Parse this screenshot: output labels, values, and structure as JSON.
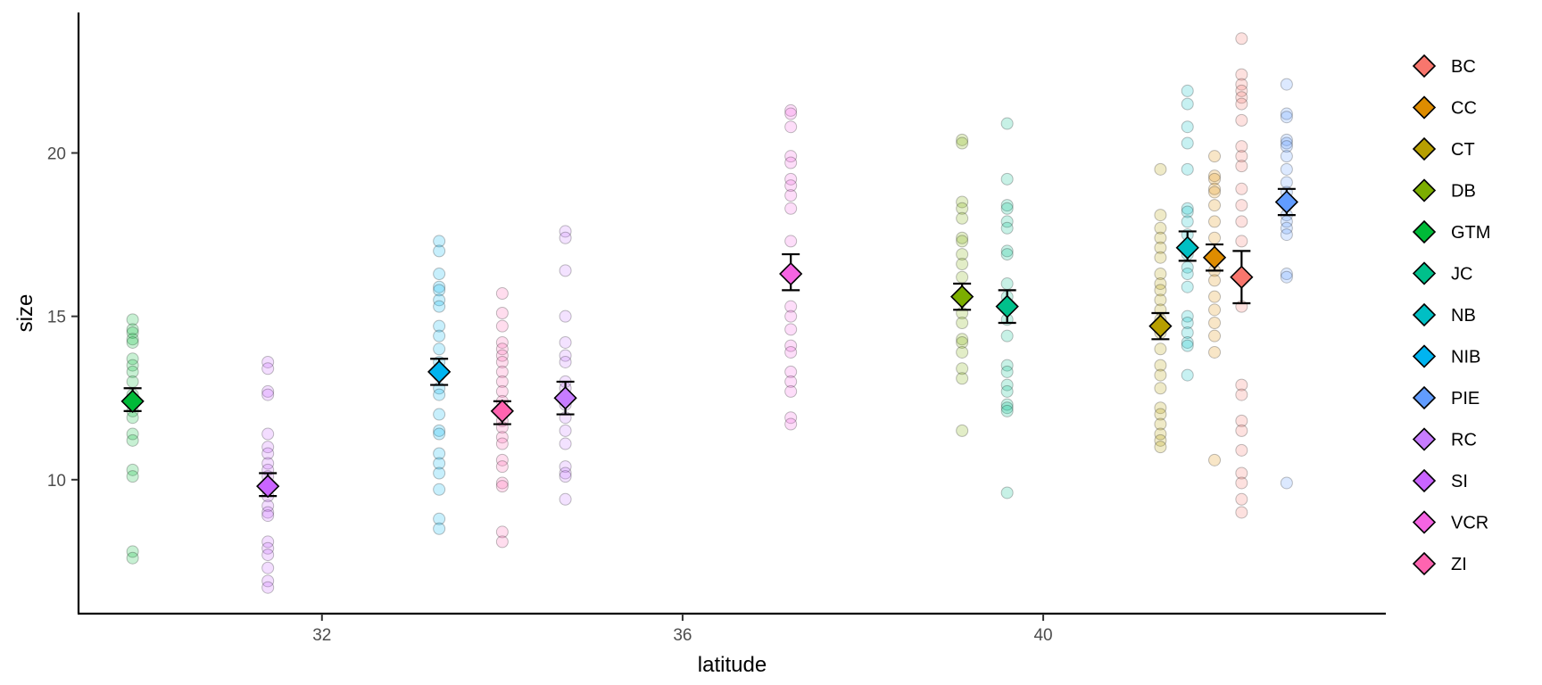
{
  "chart_data": {
    "type": "scatter",
    "xlabel": "latitude",
    "ylabel": "size",
    "xlim": [
      29.3,
      43.8
    ],
    "ylim": [
      5.9,
      24.3
    ],
    "x_ticks": [
      32,
      36,
      40
    ],
    "y_ticks": [
      10,
      15,
      20
    ],
    "grid": false,
    "legend_position": "right",
    "point_alpha": 0.22,
    "groups": [
      {
        "name": "BC",
        "color": "#F8766D",
        "latitude": 42.2,
        "mean": 16.2,
        "se_low": 15.4,
        "se_high": 17.0,
        "points": [
          23.5,
          22.4,
          22.1,
          21.9,
          21.7,
          21.5,
          21.0,
          20.2,
          19.9,
          19.6,
          18.9,
          18.4,
          17.9,
          17.3,
          15.3,
          12.9,
          12.6,
          11.8,
          11.5,
          10.9,
          10.2,
          9.9,
          9.4,
          9.0
        ]
      },
      {
        "name": "CC",
        "color": "#DE8C00",
        "latitude": 41.9,
        "mean": 16.8,
        "se_low": 16.4,
        "se_high": 17.2,
        "points": [
          19.9,
          19.3,
          19.2,
          18.9,
          18.8,
          18.4,
          17.9,
          17.4,
          16.8,
          16.4,
          16.1,
          15.6,
          15.2,
          14.8,
          14.4,
          13.9,
          10.6
        ]
      },
      {
        "name": "CT",
        "color": "#B79F00",
        "latitude": 41.3,
        "mean": 14.7,
        "se_low": 14.3,
        "se_high": 15.1,
        "points": [
          19.5,
          18.1,
          17.7,
          17.4,
          17.1,
          16.8,
          16.3,
          16.0,
          15.8,
          15.5,
          15.2,
          14.9,
          14.5,
          14.0,
          13.5,
          13.2,
          12.8,
          12.2,
          12.0,
          11.7,
          11.4,
          11.2,
          11.0
        ]
      },
      {
        "name": "DB",
        "color": "#7CAE00",
        "latitude": 39.1,
        "mean": 15.6,
        "se_low": 15.2,
        "se_high": 16.0,
        "points": [
          20.4,
          20.3,
          18.5,
          18.3,
          18.0,
          17.4,
          17.3,
          16.9,
          16.6,
          16.2,
          15.6,
          15.1,
          14.8,
          14.3,
          14.2,
          13.9,
          13.4,
          13.1,
          11.5
        ]
      },
      {
        "name": "GTM",
        "color": "#00BA38",
        "latitude": 29.9,
        "mean": 12.4,
        "se_low": 12.1,
        "se_high": 12.8,
        "points": [
          14.9,
          14.6,
          14.5,
          14.3,
          14.2,
          13.7,
          13.5,
          13.3,
          13.0,
          12.6,
          12.4,
          12.1,
          11.9,
          11.4,
          11.2,
          10.3,
          10.1,
          7.8,
          7.6
        ]
      },
      {
        "name": "JC",
        "color": "#00C08B",
        "latitude": 39.6,
        "mean": 15.3,
        "se_low": 14.8,
        "se_high": 15.8,
        "points": [
          20.9,
          19.2,
          18.4,
          18.3,
          17.9,
          17.7,
          17.0,
          16.9,
          16.0,
          15.6,
          14.9,
          14.4,
          13.5,
          13.3,
          12.9,
          12.7,
          12.3,
          12.2,
          12.1,
          9.6
        ]
      },
      {
        "name": "NB",
        "color": "#00BFC4",
        "latitude": 41.6,
        "mean": 17.1,
        "se_low": 16.7,
        "se_high": 17.6,
        "points": [
          21.9,
          21.5,
          20.8,
          20.3,
          19.5,
          18.3,
          18.2,
          17.9,
          17.5,
          17.1,
          16.9,
          16.5,
          16.3,
          15.9,
          15.0,
          14.8,
          14.5,
          14.2,
          14.1,
          13.2
        ]
      },
      {
        "name": "NIB",
        "color": "#00B4F0",
        "latitude": 33.3,
        "mean": 13.3,
        "se_low": 12.9,
        "se_high": 13.7,
        "points": [
          17.3,
          17.0,
          16.3,
          15.9,
          15.8,
          15.5,
          15.3,
          14.7,
          14.4,
          14.0,
          13.6,
          13.2,
          12.8,
          12.6,
          12.0,
          11.5,
          11.4,
          10.8,
          10.5,
          10.2,
          9.7,
          8.8,
          8.5
        ]
      },
      {
        "name": "PIE",
        "color": "#619CFF",
        "latitude": 42.7,
        "mean": 18.5,
        "se_low": 18.1,
        "se_high": 18.9,
        "points": [
          22.1,
          21.2,
          21.1,
          20.4,
          20.3,
          20.2,
          19.9,
          19.5,
          19.1,
          18.8,
          18.4,
          18.1,
          17.9,
          17.7,
          17.5,
          16.3,
          16.2,
          9.9
        ]
      },
      {
        "name": "RC",
        "color": "#C77CFF",
        "latitude": 34.7,
        "mean": 12.5,
        "se_low": 12.0,
        "se_high": 13.0,
        "points": [
          17.6,
          17.4,
          16.4,
          15.0,
          14.2,
          13.8,
          13.6,
          13.0,
          12.8,
          12.5,
          12.3,
          11.9,
          11.5,
          11.1,
          10.4,
          10.2,
          10.1,
          9.4
        ]
      },
      {
        "name": "SI",
        "color": "#C964FF",
        "latitude": 31.4,
        "mean": 9.8,
        "se_low": 9.5,
        "se_high": 10.2,
        "points": [
          13.6,
          13.4,
          12.7,
          12.6,
          11.4,
          11.0,
          10.8,
          10.5,
          10.3,
          10.1,
          9.8,
          9.5,
          9.2,
          9.0,
          8.9,
          8.1,
          7.9,
          7.7,
          7.3,
          6.9,
          6.7
        ]
      },
      {
        "name": "VCR",
        "color": "#F564E3",
        "latitude": 37.2,
        "mean": 16.3,
        "se_low": 15.8,
        "se_high": 16.9,
        "points": [
          21.3,
          21.2,
          20.8,
          19.9,
          19.7,
          19.2,
          19.0,
          18.7,
          18.3,
          17.3,
          16.2,
          15.3,
          15.0,
          14.6,
          14.1,
          13.9,
          13.3,
          13.0,
          12.7,
          11.9,
          11.7
        ]
      },
      {
        "name": "ZI",
        "color": "#FF64B0",
        "latitude": 34.0,
        "mean": 12.1,
        "se_low": 11.7,
        "se_high": 12.4,
        "points": [
          15.7,
          15.1,
          14.7,
          14.2,
          14.0,
          13.8,
          13.6,
          13.3,
          13.0,
          12.7,
          12.4,
          12.1,
          11.8,
          11.6,
          11.3,
          11.1,
          10.6,
          10.4,
          9.9,
          9.8,
          8.4,
          8.1
        ]
      }
    ]
  }
}
